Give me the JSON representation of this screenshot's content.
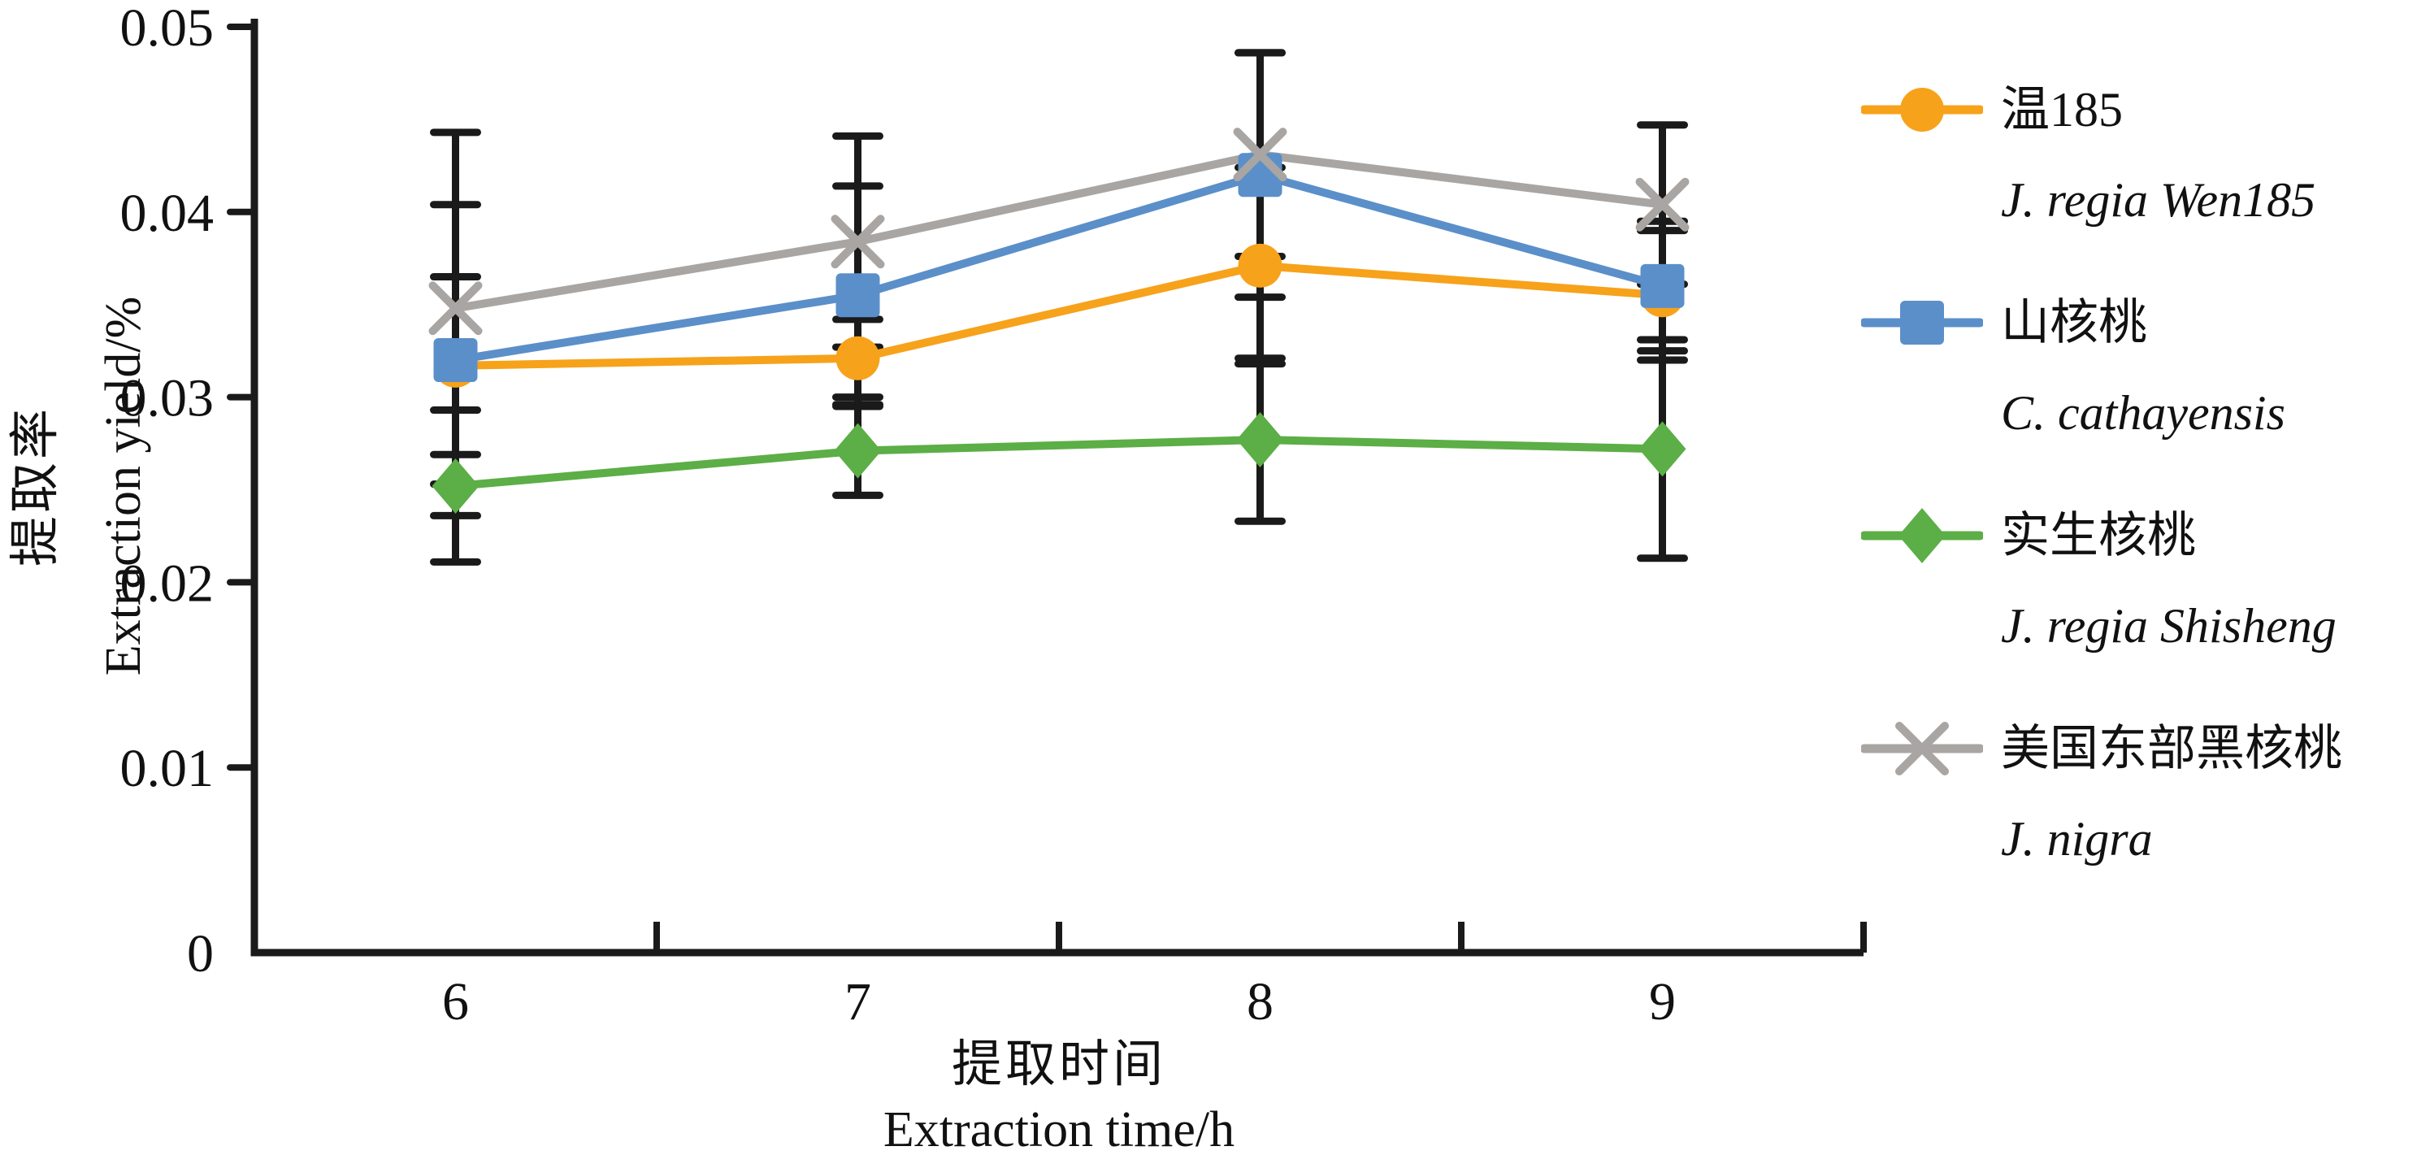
{
  "figure": {
    "background": "#ffffff",
    "axis_color": "#1a1a1a",
    "text_color": "#111111"
  },
  "y_axis": {
    "title_zh": "提取率",
    "title_en": "Extraction yield/%",
    "tick_labels": [
      "0",
      "0.01",
      "0.02",
      "0.03",
      "0.04",
      "0.05"
    ],
    "min": 0,
    "max": 0.05
  },
  "x_axis": {
    "title_zh": "提取时间",
    "title_en": "Extraction time/h",
    "tick_labels": [
      "6",
      "7",
      "8",
      "9"
    ]
  },
  "chart_data": {
    "type": "line",
    "x": [
      6,
      7,
      8,
      9
    ],
    "xlabel_zh": "提取时间",
    "xlabel_en": "Extraction time/h",
    "ylabel_zh": "提取率",
    "ylabel_en": "Extraction yield/%",
    "ylim": [
      0,
      0.05
    ],
    "grid": false,
    "error_bars": true,
    "error_bar_color": "#1a1a1a",
    "legend_position": "right",
    "series": [
      {
        "name_zh": "温185",
        "name_en": "J. regia Wen185",
        "color": "#F7A21B",
        "marker": "circle",
        "values": [
          0.0317,
          0.0321,
          0.0371,
          0.0355
        ],
        "errors": [
          0.0048,
          0.0021,
          0.0053,
          0.0035
        ]
      },
      {
        "name_zh": "山核桃",
        "name_en": "C. cathayensis",
        "color": "#5B8FC9",
        "marker": "square",
        "values": [
          0.032,
          0.0355,
          0.042,
          0.036
        ],
        "errors": [
          0.0084,
          0.0059,
          0.0066,
          0.0035
        ]
      },
      {
        "name_zh": "实生核桃",
        "name_en": "J. regia Shisheng",
        "color": "#5CAE46",
        "marker": "diamond",
        "values": [
          0.0252,
          0.0271,
          0.0277,
          0.0272
        ],
        "errors": [
          0.0041,
          0.0024,
          0.0044,
          0.0059
        ]
      },
      {
        "name_zh": "美国东部黑核桃",
        "name_en": "J. nigra",
        "color": "#A8A5A2",
        "marker": "x",
        "values": [
          0.0348,
          0.0384,
          0.0431,
          0.0404
        ],
        "errors": [
          0.0095,
          0.0057,
          0.0055,
          0.0043
        ]
      }
    ]
  }
}
